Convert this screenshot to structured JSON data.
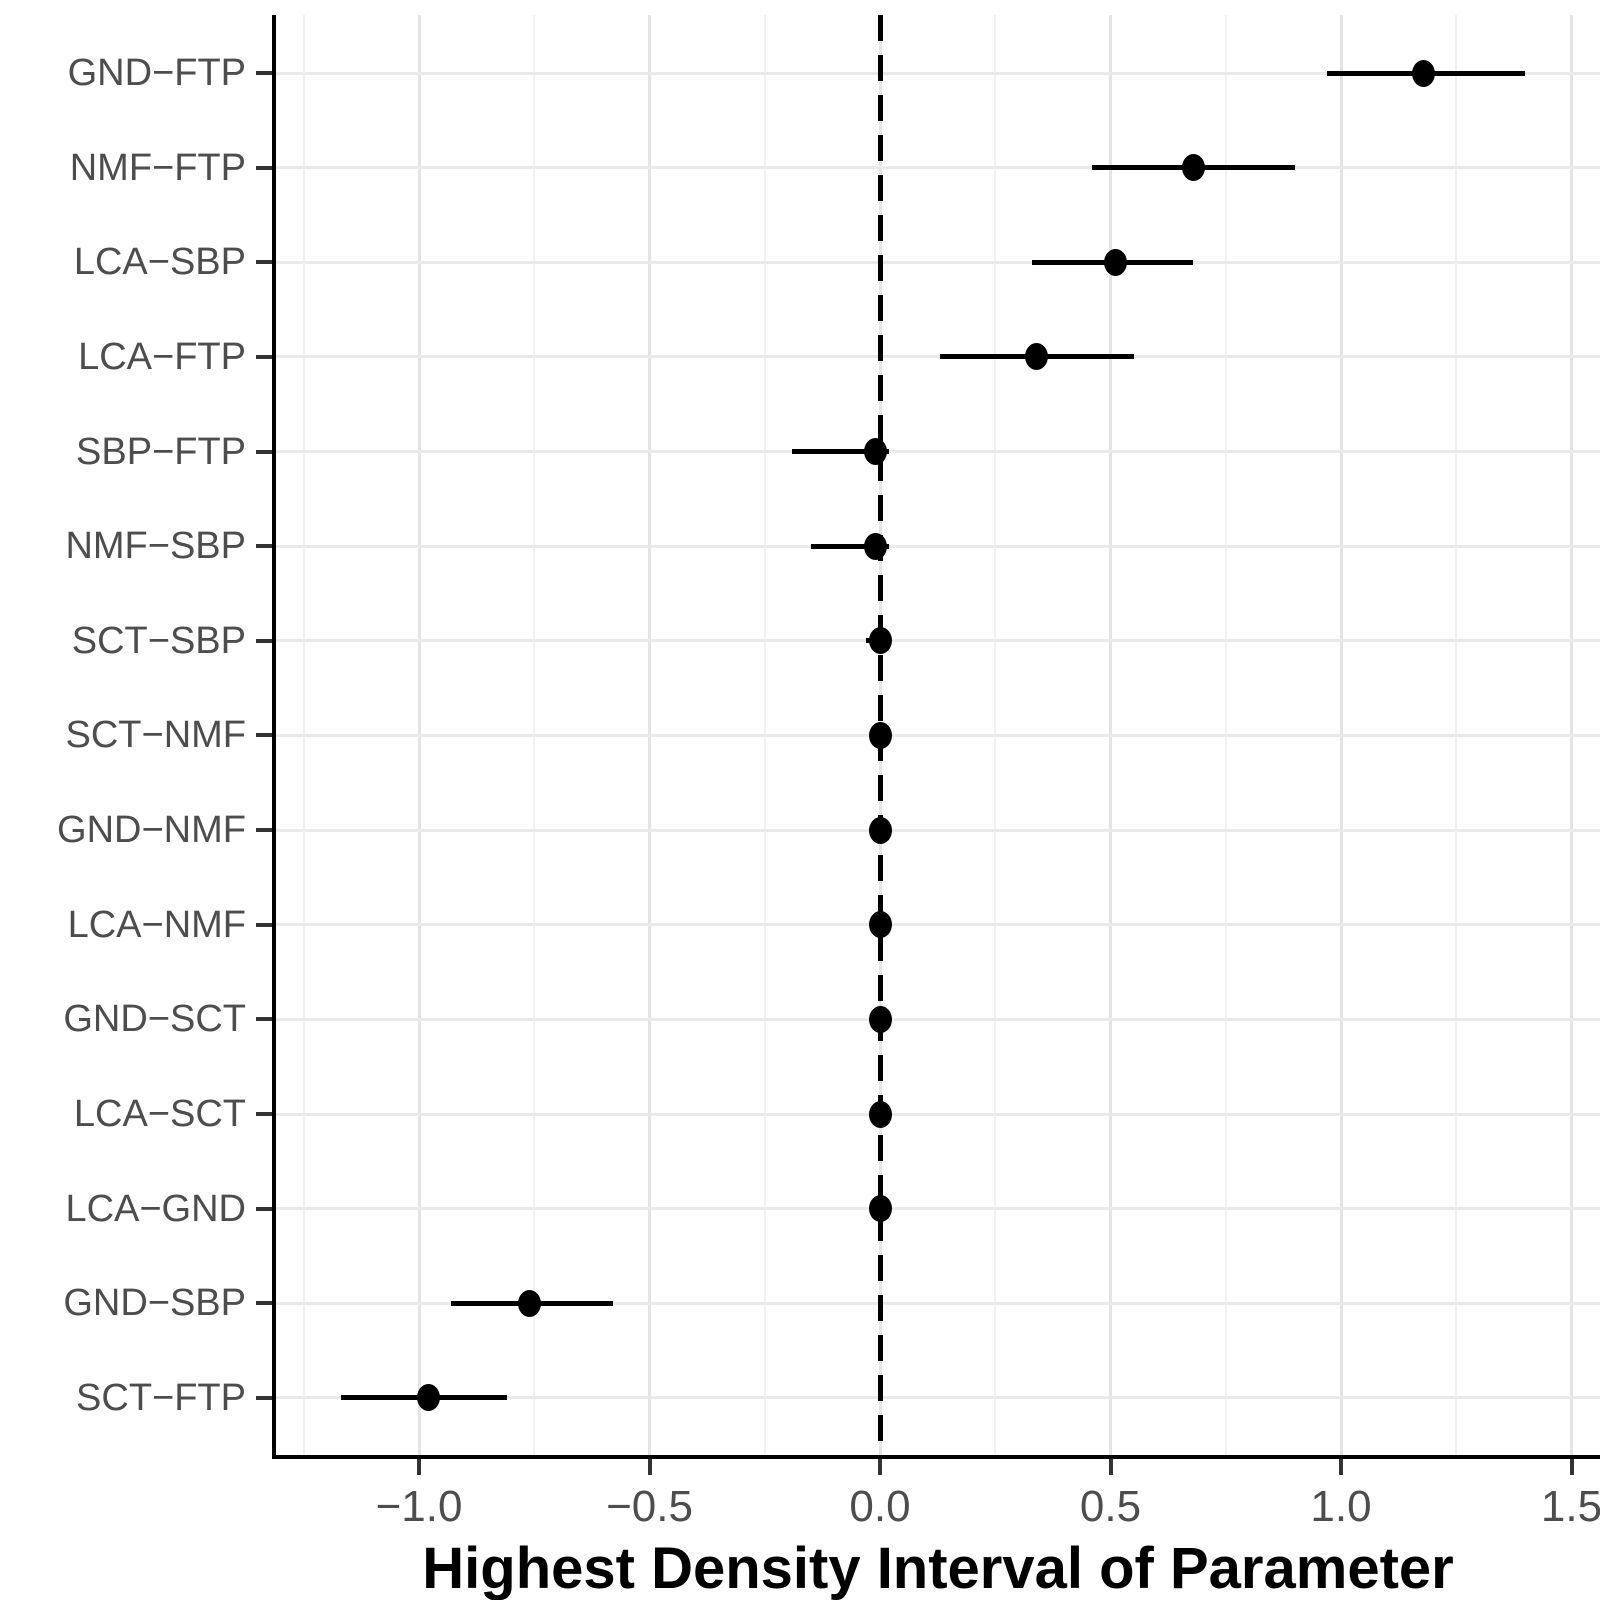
{
  "chart_data": {
    "type": "scatter",
    "subtype": "interval-forest-plot",
    "title": "",
    "xlabel": "Highest Density Interval of Parameter",
    "ylabel": "",
    "legend": "none",
    "grid": "vertical major+minor, horizontal major at each category",
    "xlim": [
      -1.31,
      1.56
    ],
    "x_ticks": [
      -1.0,
      -0.5,
      0.0,
      0.5,
      1.0,
      1.5
    ],
    "x_tick_labels": [
      "−1.0",
      "−0.5",
      "0.0",
      "0.5",
      "1.0",
      "1.5"
    ],
    "x_minor_gridlines": [
      -1.25,
      -0.75,
      -0.25,
      0.25,
      0.75,
      1.25
    ],
    "reference_line_x": 0.0,
    "categories": [
      "GND−FTP",
      "NMF−FTP",
      "LCA−SBP",
      "LCA−FTP",
      "SBP−FTP",
      "NMF−SBP",
      "SCT−SBP",
      "SCT−NMF",
      "GND−NMF",
      "LCA−NMF",
      "GND−SCT",
      "LCA−SCT",
      "LCA−GND",
      "GND−SBP",
      "SCT−FTP"
    ],
    "rows": [
      {
        "label": "GND−FTP",
        "lo": 0.97,
        "mid": 1.18,
        "hi": 1.4
      },
      {
        "label": "NMF−FTP",
        "lo": 0.46,
        "mid": 0.68,
        "hi": 0.9
      },
      {
        "label": "LCA−SBP",
        "lo": 0.33,
        "mid": 0.51,
        "hi": 0.68
      },
      {
        "label": "LCA−FTP",
        "lo": 0.13,
        "mid": 0.34,
        "hi": 0.55
      },
      {
        "label": "SBP−FTP",
        "lo": -0.19,
        "mid": -0.01,
        "hi": 0.02
      },
      {
        "label": "NMF−SBP",
        "lo": -0.15,
        "mid": -0.01,
        "hi": 0.02
      },
      {
        "label": "SCT−SBP",
        "lo": -0.03,
        "mid": 0.0,
        "hi": 0.02
      },
      {
        "label": "SCT−NMF",
        "lo": -0.02,
        "mid": 0.0,
        "hi": 0.02
      },
      {
        "label": "GND−NMF",
        "lo": -0.02,
        "mid": 0.0,
        "hi": 0.01
      },
      {
        "label": "LCA−NMF",
        "lo": -0.02,
        "mid": 0.0,
        "hi": 0.02
      },
      {
        "label": "GND−SCT",
        "lo": -0.02,
        "mid": 0.0,
        "hi": 0.02
      },
      {
        "label": "LCA−SCT",
        "lo": -0.02,
        "mid": 0.0,
        "hi": 0.02
      },
      {
        "label": "LCA−GND",
        "lo": -0.02,
        "mid": 0.0,
        "hi": 0.01
      },
      {
        "label": "GND−SBP",
        "lo": -0.93,
        "mid": -0.76,
        "hi": -0.58
      },
      {
        "label": "SCT−FTP",
        "lo": -1.17,
        "mid": -0.98,
        "hi": -0.81
      }
    ]
  },
  "colors": {
    "point_and_interval": "#000000",
    "reference_line": "#000000",
    "axis_line": "#000000",
    "tick_mark": "#333333",
    "axis_text": "#4d4d4d",
    "gridline_major": "#e4e4e4",
    "gridline_minor": "#f1f1f1",
    "background": "#ffffff"
  }
}
